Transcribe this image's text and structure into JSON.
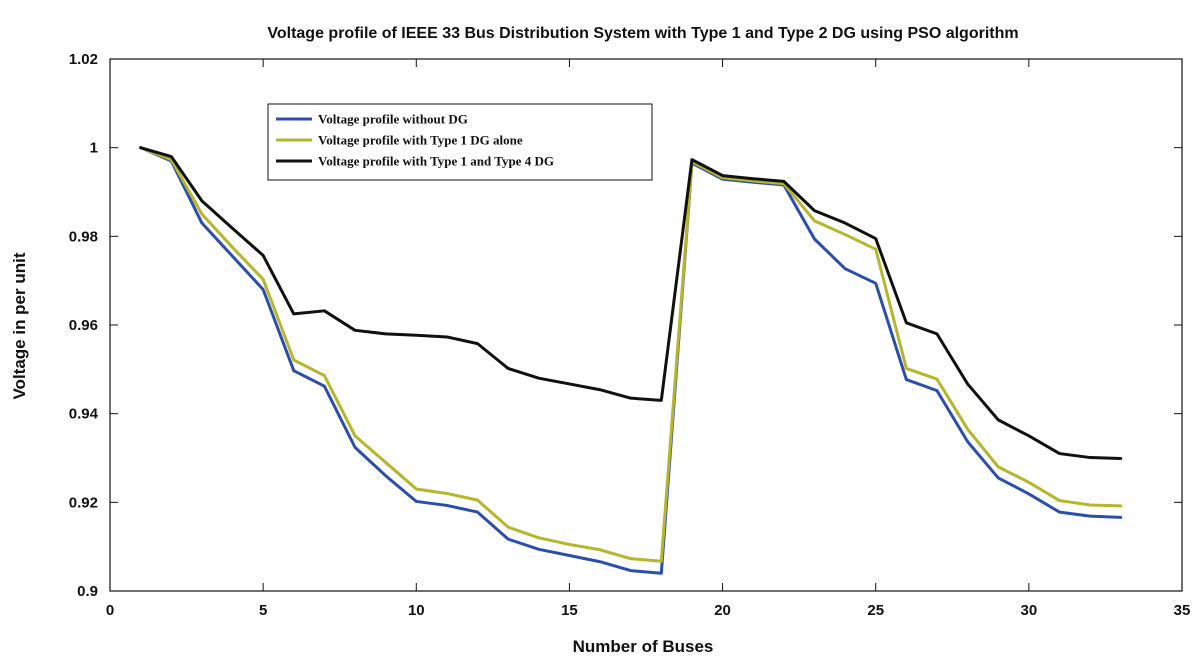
{
  "chart_data": {
    "type": "line",
    "title": "Voltage profile of IEEE 33 Bus Distribution System with Type 1 and Type 2 DG using PSO algorithm",
    "xlabel": "Number of Buses",
    "ylabel": "Voltage in per unit",
    "xlim": [
      0,
      35
    ],
    "ylim": [
      0.9,
      1.02
    ],
    "xticks": [
      0,
      5,
      10,
      15,
      20,
      25,
      30,
      35
    ],
    "xtick_labels": [
      "0",
      "5",
      "10",
      "15",
      "20",
      "25",
      "30",
      "35"
    ],
    "yticks": [
      0.9,
      0.92,
      0.94,
      0.96,
      0.98,
      1.0,
      1.02
    ],
    "ytick_labels": [
      "0.9",
      "0.92",
      "0.94",
      "0.96",
      "0.98",
      "1",
      "1.02"
    ],
    "grid": false,
    "legend_position": "top-left",
    "x": [
      1,
      2,
      3,
      4,
      5,
      6,
      7,
      8,
      9,
      10,
      11,
      12,
      13,
      14,
      15,
      16,
      17,
      18,
      19,
      20,
      21,
      22,
      23,
      24,
      25,
      26,
      27,
      28,
      29,
      30,
      31,
      32,
      33
    ],
    "series": [
      {
        "name": "Voltage profile without DG",
        "color": "#2b4fa8",
        "values": [
          1.0,
          0.997,
          0.983,
          0.9755,
          0.968,
          0.9497,
          0.9462,
          0.9324,
          0.926,
          0.9202,
          0.9193,
          0.9178,
          0.9117,
          0.9094,
          0.908,
          0.9066,
          0.9046,
          0.904,
          0.9965,
          0.9929,
          0.9922,
          0.9916,
          0.9794,
          0.9727,
          0.9694,
          0.9477,
          0.9452,
          0.9337,
          0.9255,
          0.9219,
          0.9178,
          0.9169,
          0.9166
        ]
      },
      {
        "name": "Voltage profile with Type 1 DG alone",
        "color": "#b5b52e",
        "values": [
          1.0,
          0.9973,
          0.985,
          0.9775,
          0.9703,
          0.9521,
          0.9486,
          0.935,
          0.929,
          0.923,
          0.922,
          0.9205,
          0.9144,
          0.912,
          0.9105,
          0.9093,
          0.9073,
          0.9067,
          0.9968,
          0.9932,
          0.9925,
          0.9919,
          0.9835,
          0.9804,
          0.9771,
          0.9502,
          0.9478,
          0.9365,
          0.928,
          0.9245,
          0.9204,
          0.9194,
          0.9192
        ]
      },
      {
        "name": "Voltage profile with Type 1 and Type 4 DG",
        "color": "#111111",
        "values": [
          1.0,
          0.998,
          0.988,
          0.9818,
          0.9757,
          0.9625,
          0.9632,
          0.9588,
          0.958,
          0.9577,
          0.9573,
          0.9558,
          0.9502,
          0.948,
          0.9467,
          0.9454,
          0.9435,
          0.943,
          0.9973,
          0.9937,
          0.993,
          0.9924,
          0.9858,
          0.983,
          0.9795,
          0.9605,
          0.958,
          0.9467,
          0.9386,
          0.935,
          0.931,
          0.9301,
          0.9299
        ]
      }
    ]
  }
}
